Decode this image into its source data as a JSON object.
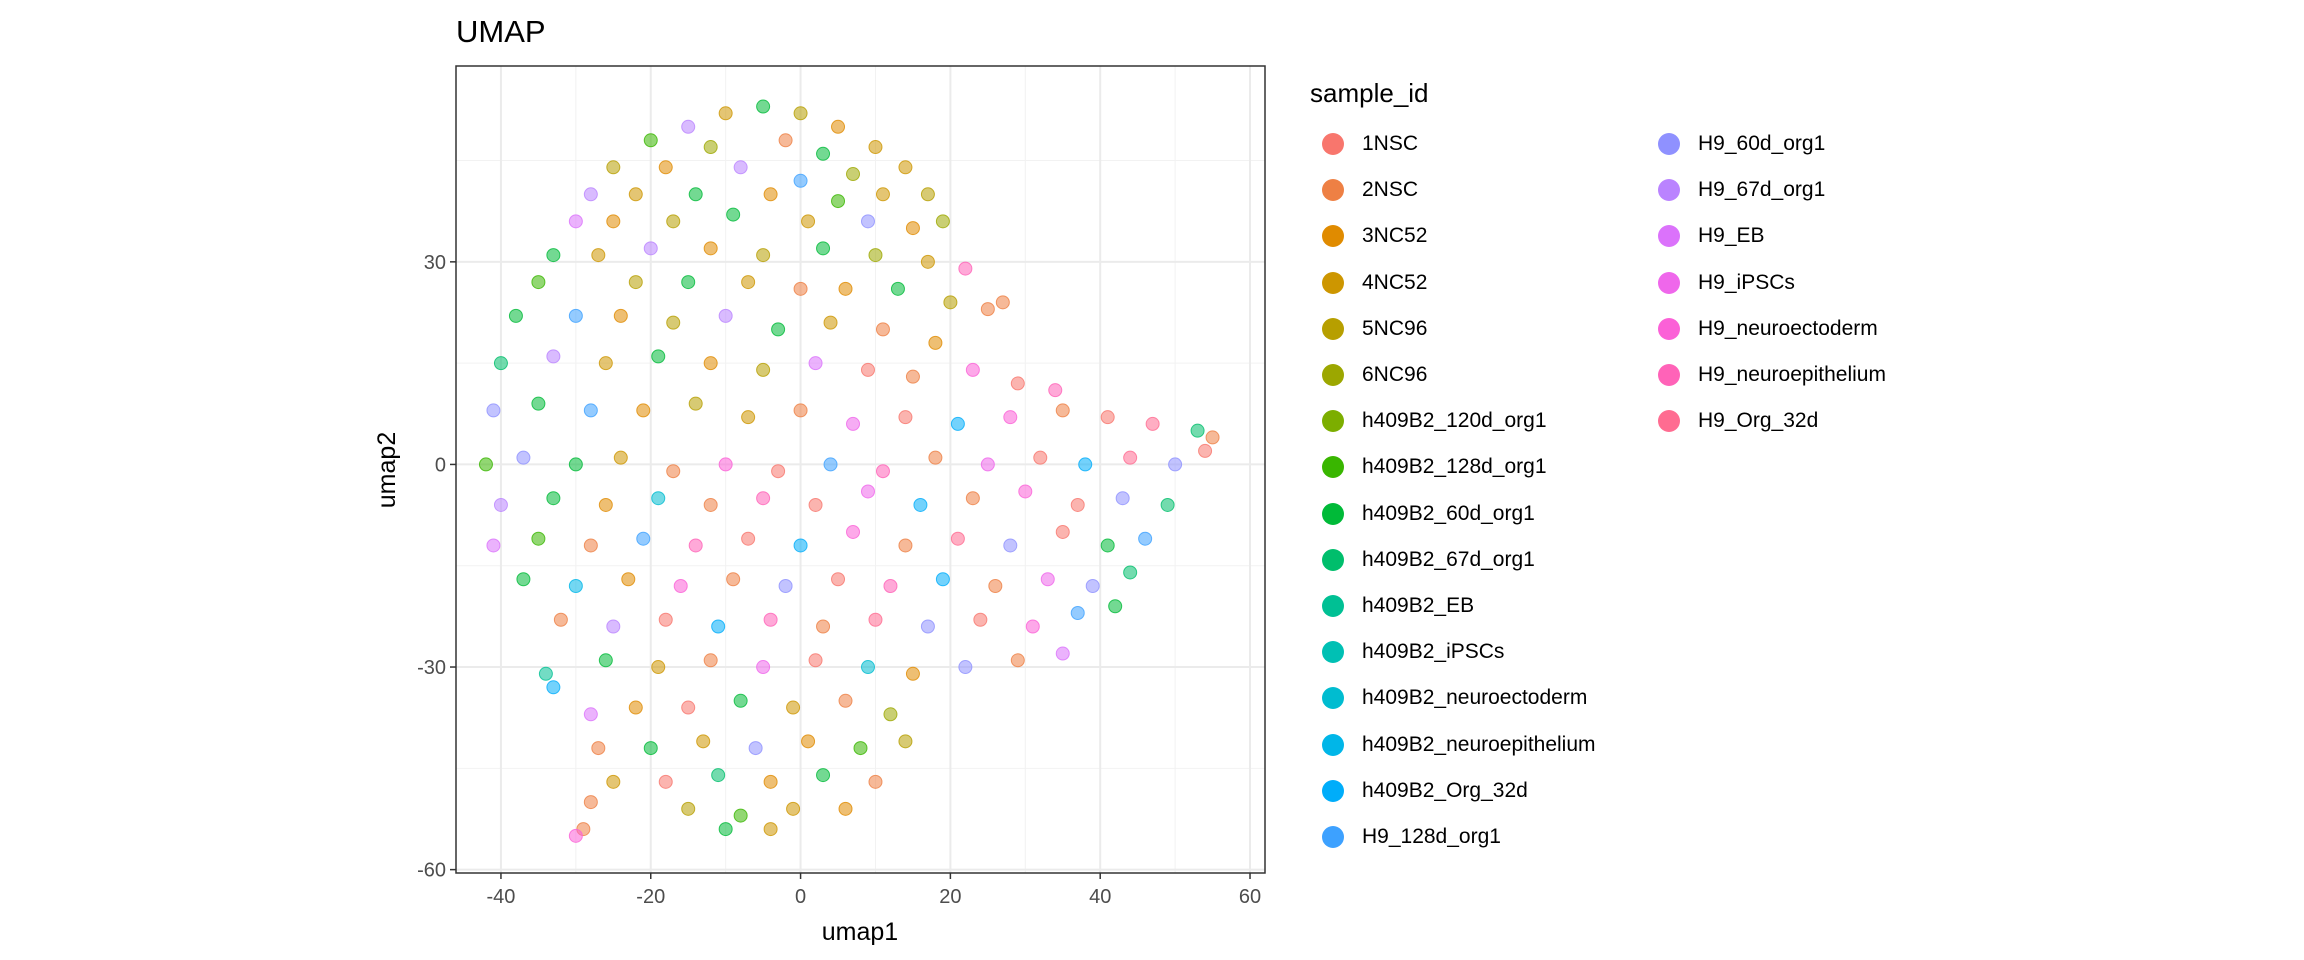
{
  "chart_data": {
    "type": "scatter",
    "title": "UMAP",
    "xlabel": "umap1",
    "ylabel": "umap2",
    "xlim": [
      -46,
      62
    ],
    "ylim": [
      -60.5,
      59
    ],
    "xticks": [
      -40,
      -20,
      0,
      20,
      40,
      60
    ],
    "yticks": [
      -60,
      -30,
      0,
      30
    ],
    "grid": true,
    "point_alpha": 0.55,
    "legend": {
      "title": "sample_id",
      "placement": "right",
      "columns": 2
    },
    "groups": [
      {
        "name": "1NSC",
        "color": "#F8766D"
      },
      {
        "name": "2NSC",
        "color": "#EE8044"
      },
      {
        "name": "3NC52",
        "color": "#E08B00"
      },
      {
        "name": "4NC52",
        "color": "#CD9600"
      },
      {
        "name": "5NC96",
        "color": "#B79F00"
      },
      {
        "name": "6NC96",
        "color": "#9CA700"
      },
      {
        "name": "h409B2_120d_org1",
        "color": "#7CAE00"
      },
      {
        "name": "h409B2_128d_org1",
        "color": "#39B600"
      },
      {
        "name": "h409B2_60d_org1",
        "color": "#00BA38"
      },
      {
        "name": "h409B2_67d_org1",
        "color": "#00BE6C"
      },
      {
        "name": "h409B2_EB",
        "color": "#00C094"
      },
      {
        "name": "h409B2_iPSCs",
        "color": "#00C0B4"
      },
      {
        "name": "h409B2_neuroectoderm",
        "color": "#00BCD0"
      },
      {
        "name": "h409B2_neuroepithelium",
        "color": "#00B6E8"
      },
      {
        "name": "h409B2_Org_32d",
        "color": "#00ADFA"
      },
      {
        "name": "H9_128d_org1",
        "color": "#3DA1FF"
      },
      {
        "name": "H9_60d_org1",
        "color": "#8F91FF"
      },
      {
        "name": "H9_67d_org1",
        "color": "#BA83FF"
      },
      {
        "name": "H9_EB",
        "color": "#DB72FB"
      },
      {
        "name": "H9_iPSCs",
        "color": "#EF67EB"
      },
      {
        "name": "H9_neuroectoderm",
        "color": "#FB61D7"
      },
      {
        "name": "H9_neuroepithelium",
        "color": "#FF63B8"
      },
      {
        "name": "H9_Org_32d",
        "color": "#FF6C91"
      }
    ],
    "points": [
      [
        -10,
        52,
        3
      ],
      [
        -5,
        53,
        8
      ],
      [
        0,
        52,
        4
      ],
      [
        -15,
        50,
        17
      ],
      [
        5,
        50,
        2
      ],
      [
        -20,
        48,
        7
      ],
      [
        10,
        47,
        3
      ],
      [
        -12,
        47,
        5
      ],
      [
        -2,
        48,
        1
      ],
      [
        3,
        46,
        8
      ],
      [
        -25,
        44,
        4
      ],
      [
        14,
        44,
        3
      ],
      [
        -18,
        44,
        2
      ],
      [
        -8,
        44,
        17
      ],
      [
        7,
        43,
        5
      ],
      [
        0,
        42,
        15
      ],
      [
        -28,
        40,
        17
      ],
      [
        17,
        40,
        4
      ],
      [
        -22,
        40,
        3
      ],
      [
        -14,
        40,
        8
      ],
      [
        -4,
        40,
        2
      ],
      [
        5,
        39,
        7
      ],
      [
        11,
        40,
        3
      ],
      [
        -30,
        36,
        18
      ],
      [
        19,
        36,
        5
      ],
      [
        -25,
        36,
        2
      ],
      [
        -17,
        36,
        4
      ],
      [
        -9,
        37,
        8
      ],
      [
        1,
        36,
        3
      ],
      [
        9,
        36,
        16
      ],
      [
        15,
        35,
        2
      ],
      [
        -33,
        31,
        8
      ],
      [
        -27,
        31,
        3
      ],
      [
        -20,
        32,
        17
      ],
      [
        -12,
        32,
        2
      ],
      [
        -5,
        31,
        4
      ],
      [
        3,
        32,
        8
      ],
      [
        10,
        31,
        5
      ],
      [
        17,
        30,
        3
      ],
      [
        22,
        29,
        21
      ],
      [
        -35,
        27,
        7
      ],
      [
        -22,
        27,
        4
      ],
      [
        -15,
        27,
        8
      ],
      [
        -7,
        27,
        3
      ],
      [
        0,
        26,
        1
      ],
      [
        6,
        26,
        2
      ],
      [
        13,
        26,
        8
      ],
      [
        20,
        24,
        4
      ],
      [
        27,
        24,
        1
      ],
      [
        25,
        23,
        1
      ],
      [
        -38,
        22,
        8
      ],
      [
        -30,
        22,
        15
      ],
      [
        -24,
        22,
        2
      ],
      [
        -17,
        21,
        4
      ],
      [
        -10,
        22,
        17
      ],
      [
        -3,
        20,
        8
      ],
      [
        4,
        21,
        3
      ],
      [
        11,
        20,
        1
      ],
      [
        18,
        18,
        2
      ],
      [
        -40,
        15,
        9
      ],
      [
        -33,
        16,
        17
      ],
      [
        -26,
        15,
        3
      ],
      [
        -19,
        16,
        8
      ],
      [
        -12,
        15,
        2
      ],
      [
        -5,
        14,
        4
      ],
      [
        2,
        15,
        18
      ],
      [
        9,
        14,
        0
      ],
      [
        15,
        13,
        1
      ],
      [
        23,
        14,
        20
      ],
      [
        29,
        12,
        0
      ],
      [
        34,
        11,
        21
      ],
      [
        -41,
        8,
        16
      ],
      [
        -35,
        9,
        8
      ],
      [
        -28,
        8,
        15
      ],
      [
        -21,
        8,
        2
      ],
      [
        -14,
        9,
        4
      ],
      [
        -7,
        7,
        3
      ],
      [
        0,
        8,
        1
      ],
      [
        7,
        6,
        19
      ],
      [
        14,
        7,
        0
      ],
      [
        21,
        6,
        14
      ],
      [
        28,
        7,
        20
      ],
      [
        35,
        8,
        1
      ],
      [
        41,
        7,
        0
      ],
      [
        47,
        6,
        22
      ],
      [
        53,
        5,
        9
      ],
      [
        55,
        4,
        1
      ],
      [
        -42,
        0,
        7
      ],
      [
        -37,
        1,
        16
      ],
      [
        -30,
        0,
        8
      ],
      [
        -24,
        1,
        3
      ],
      [
        -17,
        -1,
        1
      ],
      [
        -10,
        0,
        20
      ],
      [
        -3,
        -1,
        0
      ],
      [
        4,
        0,
        15
      ],
      [
        11,
        -1,
        21
      ],
      [
        18,
        1,
        1
      ],
      [
        25,
        0,
        19
      ],
      [
        32,
        1,
        0
      ],
      [
        38,
        0,
        14
      ],
      [
        44,
        1,
        22
      ],
      [
        50,
        0,
        16
      ],
      [
        54,
        2,
        0
      ],
      [
        -40,
        -6,
        17
      ],
      [
        -33,
        -5,
        8
      ],
      [
        -26,
        -6,
        2
      ],
      [
        -19,
        -5,
        12
      ],
      [
        -12,
        -6,
        1
      ],
      [
        -5,
        -5,
        21
      ],
      [
        2,
        -6,
        0
      ],
      [
        9,
        -4,
        19
      ],
      [
        16,
        -6,
        14
      ],
      [
        23,
        -5,
        1
      ],
      [
        30,
        -4,
        20
      ],
      [
        37,
        -6,
        0
      ],
      [
        43,
        -5,
        16
      ],
      [
        49,
        -6,
        9
      ],
      [
        -41,
        -12,
        18
      ],
      [
        -35,
        -11,
        7
      ],
      [
        -28,
        -12,
        1
      ],
      [
        -21,
        -11,
        15
      ],
      [
        -14,
        -12,
        21
      ],
      [
        -7,
        -11,
        0
      ],
      [
        0,
        -12,
        14
      ],
      [
        7,
        -10,
        20
      ],
      [
        14,
        -12,
        1
      ],
      [
        21,
        -11,
        22
      ],
      [
        28,
        -12,
        16
      ],
      [
        35,
        -10,
        0
      ],
      [
        41,
        -12,
        8
      ],
      [
        46,
        -11,
        15
      ],
      [
        -37,
        -17,
        8
      ],
      [
        -30,
        -18,
        13
      ],
      [
        -23,
        -17,
        2
      ],
      [
        -16,
        -18,
        20
      ],
      [
        -9,
        -17,
        1
      ],
      [
        -2,
        -18,
        16
      ],
      [
        5,
        -17,
        0
      ],
      [
        12,
        -18,
        21
      ],
      [
        19,
        -17,
        14
      ],
      [
        26,
        -18,
        1
      ],
      [
        33,
        -17,
        19
      ],
      [
        39,
        -18,
        16
      ],
      [
        44,
        -16,
        9
      ],
      [
        -32,
        -23,
        1
      ],
      [
        -25,
        -24,
        17
      ],
      [
        -18,
        -23,
        0
      ],
      [
        -11,
        -24,
        14
      ],
      [
        -4,
        -23,
        21
      ],
      [
        3,
        -24,
        1
      ],
      [
        10,
        -23,
        22
      ],
      [
        17,
        -24,
        16
      ],
      [
        24,
        -23,
        0
      ],
      [
        31,
        -24,
        20
      ],
      [
        37,
        -22,
        15
      ],
      [
        42,
        -21,
        8
      ],
      [
        -26,
        -29,
        8
      ],
      [
        -19,
        -30,
        3
      ],
      [
        -12,
        -29,
        1
      ],
      [
        -5,
        -30,
        19
      ],
      [
        2,
        -29,
        0
      ],
      [
        9,
        -30,
        12
      ],
      [
        15,
        -31,
        2
      ],
      [
        22,
        -30,
        16
      ],
      [
        29,
        -29,
        1
      ],
      [
        35,
        -28,
        18
      ],
      [
        -34,
        -31,
        10
      ],
      [
        -33,
        -33,
        14
      ],
      [
        -28,
        -37,
        18
      ],
      [
        -22,
        -36,
        2
      ],
      [
        -15,
        -36,
        0
      ],
      [
        -8,
        -35,
        8
      ],
      [
        -1,
        -36,
        3
      ],
      [
        6,
        -35,
        1
      ],
      [
        12,
        -37,
        5
      ],
      [
        -27,
        -42,
        1
      ],
      [
        -20,
        -42,
        8
      ],
      [
        -13,
        -41,
        3
      ],
      [
        -6,
        -42,
        16
      ],
      [
        1,
        -41,
        2
      ],
      [
        8,
        -42,
        7
      ],
      [
        14,
        -41,
        4
      ],
      [
        -25,
        -47,
        3
      ],
      [
        -18,
        -47,
        0
      ],
      [
        -11,
        -46,
        9
      ],
      [
        -4,
        -47,
        2
      ],
      [
        3,
        -46,
        8
      ],
      [
        10,
        -47,
        1
      ],
      [
        -28,
        -50,
        1
      ],
      [
        -15,
        -51,
        4
      ],
      [
        -8,
        -52,
        7
      ],
      [
        -1,
        -51,
        3
      ],
      [
        6,
        -51,
        2
      ],
      [
        -10,
        -54,
        8
      ],
      [
        -4,
        -54,
        3
      ],
      [
        -29,
        -54,
        1
      ],
      [
        -30,
        -55,
        20
      ]
    ]
  }
}
